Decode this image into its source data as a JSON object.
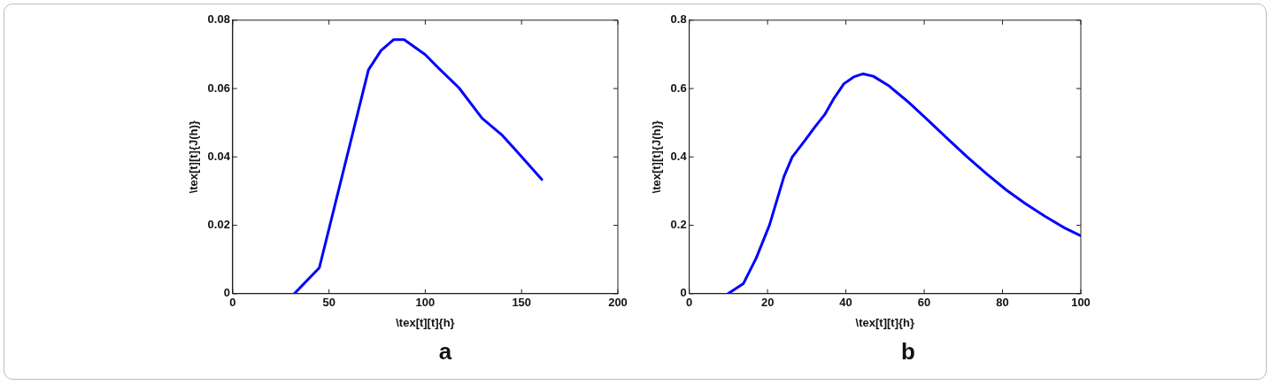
{
  "chart_data": [
    {
      "type": "line",
      "xlabel": "\\tex[t][t]{h}",
      "ylabel": "\\tex[t][t]{J(h)}",
      "color": "#0000ff",
      "marker": "none",
      "x": [
        32,
        45,
        70.5,
        77,
        83.5,
        89,
        100,
        106.5,
        117.5,
        129.5,
        140,
        146.5,
        160.5
      ],
      "values": [
        0,
        0.0076,
        0.0655,
        0.0711,
        0.0743,
        0.0743,
        0.0699,
        0.0662,
        0.0602,
        0.0513,
        0.0463,
        0.0423,
        0.0334
      ],
      "xlim": [
        0,
        200
      ],
      "xticks": [
        0,
        50,
        100,
        150,
        200
      ],
      "ylim": [
        0,
        0.08
      ],
      "yticks": [
        0,
        0.02,
        0.04,
        0.06,
        0.08
      ],
      "annotations": [
        "a"
      ]
    },
    {
      "type": "line",
      "xlabel": "\\tex[t][t]{h}",
      "ylabel": "\\tex[t][t]{J(h)}",
      "color": "#0000ff",
      "marker": "none",
      "x": [
        9.9,
        13.8,
        17.1,
        20.5,
        24.2,
        26.3,
        29.6,
        32.1,
        34.6,
        37,
        39.5,
        42,
        44.4,
        47,
        51.1,
        56.1,
        61.1,
        66,
        71,
        76,
        81,
        85.9,
        90.9,
        95.9,
        100
      ],
      "values": [
        0,
        0.029,
        0.104,
        0.201,
        0.343,
        0.4,
        0.449,
        0.488,
        0.524,
        0.572,
        0.614,
        0.634,
        0.643,
        0.636,
        0.607,
        0.559,
        0.506,
        0.453,
        0.4,
        0.35,
        0.303,
        0.263,
        0.226,
        0.192,
        0.169
      ],
      "xlim": [
        0,
        100
      ],
      "xticks": [
        0,
        20,
        40,
        60,
        80,
        100
      ],
      "ylim": [
        0,
        0.8
      ],
      "yticks": [
        0,
        0.2,
        0.4,
        0.6,
        0.8
      ],
      "annotations": [
        "b"
      ]
    }
  ]
}
